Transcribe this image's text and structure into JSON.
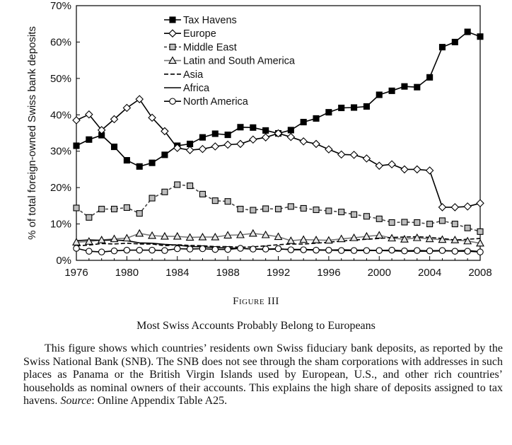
{
  "chart_data": {
    "type": "line",
    "xlabel": "",
    "ylabel": "% of total foreign-owned Swiss bank deposits",
    "x": [
      1976,
      1977,
      1978,
      1979,
      1980,
      1981,
      1982,
      1983,
      1984,
      1985,
      1986,
      1987,
      1988,
      1989,
      1990,
      1991,
      1992,
      1993,
      1994,
      1995,
      1996,
      1997,
      1998,
      1999,
      2000,
      2001,
      2002,
      2003,
      2004,
      2005,
      2006,
      2007,
      2008
    ],
    "xlim": [
      1976,
      2008
    ],
    "ylim": [
      0,
      70
    ],
    "xticks": [
      "1976",
      "1980",
      "1984",
      "1988",
      "1992",
      "1996",
      "2000",
      "2004",
      "2008"
    ],
    "yticks": [
      "0%",
      "10%",
      "20%",
      "30%",
      "40%",
      "50%",
      "60%",
      "70%"
    ],
    "legend_position": "top-center",
    "series": [
      {
        "name": "Tax Havens",
        "style": "solid",
        "marker": "filled-square",
        "values": [
          31.5,
          33.2,
          34.4,
          31.2,
          27.5,
          25.8,
          26.8,
          29.0,
          31.5,
          32.0,
          33.8,
          34.8,
          34.5,
          36.6,
          36.5,
          35.7,
          34.9,
          35.8,
          38.0,
          39.0,
          40.7,
          41.9,
          42.0,
          42.3,
          45.5,
          46.6,
          47.8,
          47.6,
          50.3,
          58.6,
          60.0,
          62.8,
          61.5
        ]
      },
      {
        "name": "Europe",
        "style": "solid",
        "marker": "open-diamond",
        "values": [
          38.5,
          40.1,
          35.8,
          38.8,
          41.9,
          44.3,
          39.2,
          35.5,
          30.9,
          30.3,
          30.6,
          31.3,
          31.8,
          32.0,
          33.2,
          33.8,
          34.9,
          33.9,
          32.7,
          32.0,
          30.5,
          29.1,
          29.0,
          28.0,
          26.0,
          26.4,
          25.0,
          25.0,
          24.7,
          14.6,
          14.6,
          14.8,
          15.7
        ]
      },
      {
        "name": "Middle East",
        "style": "dashed",
        "marker": "gray-square",
        "values": [
          14.4,
          11.8,
          14.1,
          14.1,
          14.5,
          12.9,
          17.1,
          18.8,
          20.8,
          20.5,
          18.2,
          16.4,
          16.2,
          14.1,
          13.8,
          14.2,
          14.1,
          14.8,
          14.3,
          13.9,
          13.6,
          13.3,
          12.6,
          12.1,
          11.4,
          10.4,
          10.5,
          10.4,
          10.0,
          10.9,
          10.0,
          8.9,
          7.9
        ]
      },
      {
        "name": "Latin and South America",
        "style": "solid",
        "marker": "open-triangle",
        "values": [
          5.0,
          5.2,
          5.6,
          5.9,
          6.1,
          7.4,
          6.8,
          6.6,
          6.6,
          6.3,
          6.4,
          6.4,
          6.9,
          7.0,
          7.4,
          7.0,
          6.5,
          5.4,
          5.7,
          5.6,
          5.5,
          5.9,
          6.2,
          6.6,
          6.9,
          6.1,
          5.8,
          6.2,
          5.9,
          5.7,
          5.6,
          5.3,
          4.7
        ]
      },
      {
        "name": "Asia",
        "style": "dashed",
        "marker": "none",
        "values": [
          4.0,
          4.2,
          4.6,
          4.5,
          4.7,
          4.5,
          4.5,
          4.0,
          4.3,
          4.1,
          4.0,
          3.8,
          3.8,
          3.6,
          3.7,
          4.0,
          4.3,
          4.5,
          4.5,
          4.7,
          5.0,
          5.3,
          5.6,
          5.8,
          6.0,
          6.3,
          6.4,
          6.5,
          6.3,
          6.0,
          5.6,
          5.8,
          6.0
        ]
      },
      {
        "name": "Africa",
        "style": "solid",
        "marker": "none",
        "values": [
          5.4,
          5.6,
          5.5,
          5.6,
          5.4,
          4.8,
          4.7,
          4.4,
          4.2,
          3.8,
          3.7,
          3.5,
          3.4,
          3.3,
          3.1,
          3.0,
          3.1,
          3.0,
          3.0,
          2.9,
          2.8,
          2.9,
          2.8,
          2.8,
          2.7,
          2.6,
          2.5,
          2.5,
          2.5,
          2.6,
          2.6,
          2.7,
          2.4
        ]
      },
      {
        "name": "North America",
        "style": "solid",
        "marker": "open-circle",
        "values": [
          3.3,
          2.5,
          2.3,
          2.6,
          2.8,
          2.8,
          2.8,
          2.7,
          3.2,
          3.1,
          3.2,
          3.0,
          3.0,
          3.3,
          3.1,
          3.1,
          3.2,
          2.9,
          2.9,
          2.8,
          2.8,
          2.7,
          2.7,
          2.7,
          2.7,
          2.8,
          2.6,
          2.7,
          2.6,
          2.7,
          2.5,
          2.5,
          2.3
        ]
      }
    ]
  },
  "figure": {
    "label": "Figure III",
    "title": "Most Swiss Accounts Probably Belong to Europeans",
    "caption_main": "This figure shows which countries’ residents own Swiss fiduciary bank deposits, as reported by the Swiss National Bank (SNB). The SNB does not see through the sham corporations with addresses in such places as Panama or the British Virgin Islands used by European, U.S., and other rich countries’ households as nominal owners of their accounts. This explains the high share of deposits assigned to tax havens. ",
    "caption_source_label": "Source",
    "caption_source_text": ": Online Appendix Table A25."
  }
}
